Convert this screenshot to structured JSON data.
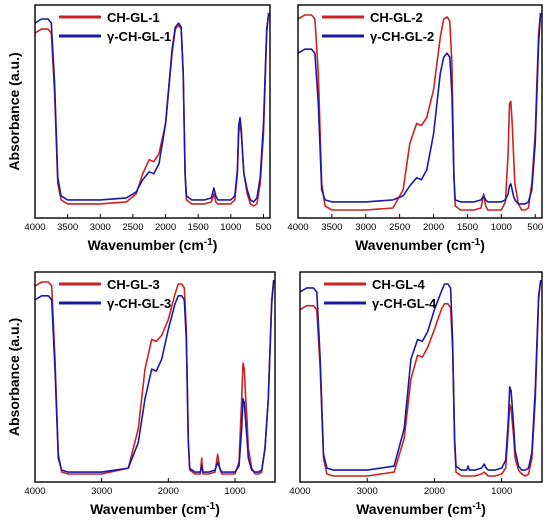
{
  "colors": {
    "red": "#cc2222",
    "blue": "#1a1aa8"
  },
  "chart_data": [
    {
      "type": "line",
      "xlabel": "Wavenumber (cm-1)",
      "ylabel": "Absorbance (a.u.)",
      "xlim": [
        4000,
        400
      ],
      "xticks": [
        4000,
        3500,
        3000,
        2500,
        2000,
        1500,
        1000,
        500
      ],
      "series": [
        {
          "name": "CH-GL-1",
          "color": "red",
          "x": [
            4000,
            3900,
            3800,
            3750,
            3700,
            3650,
            3600,
            3500,
            3000,
            2600,
            2450,
            2350,
            2250,
            2180,
            2100,
            2000,
            1900,
            1850,
            1800,
            1760,
            1730,
            1700,
            1680,
            1600,
            1400,
            1300,
            1260,
            1230,
            1200,
            1100,
            1000,
            940,
            900,
            880,
            860,
            840,
            820,
            800,
            750,
            700,
            650,
            600,
            550,
            500,
            450,
            420
          ],
          "y": [
            0.9,
            0.92,
            0.92,
            0.9,
            0.6,
            0.15,
            0.07,
            0.05,
            0.05,
            0.06,
            0.1,
            0.2,
            0.27,
            0.26,
            0.3,
            0.45,
            0.8,
            0.92,
            0.94,
            0.92,
            0.7,
            0.2,
            0.07,
            0.05,
            0.05,
            0.06,
            0.1,
            0.06,
            0.05,
            0.05,
            0.05,
            0.07,
            0.2,
            0.4,
            0.46,
            0.4,
            0.3,
            0.2,
            0.1,
            0.05,
            0.04,
            0.05,
            0.15,
            0.4,
            0.9,
            1.0
          ]
        },
        {
          "name": "γ-CH-GL-1",
          "color": "blue",
          "x": [
            4000,
            3900,
            3800,
            3750,
            3700,
            3650,
            3600,
            3500,
            3000,
            2600,
            2450,
            2350,
            2250,
            2180,
            2100,
            2000,
            1900,
            1850,
            1800,
            1760,
            1730,
            1700,
            1680,
            1600,
            1400,
            1300,
            1260,
            1230,
            1200,
            1100,
            1000,
            940,
            900,
            880,
            860,
            840,
            820,
            800,
            750,
            700,
            650,
            600,
            550,
            500,
            450,
            420
          ],
          "y": [
            0.95,
            0.97,
            0.97,
            0.95,
            0.65,
            0.18,
            0.09,
            0.07,
            0.07,
            0.08,
            0.11,
            0.17,
            0.21,
            0.2,
            0.25,
            0.45,
            0.82,
            0.93,
            0.95,
            0.93,
            0.7,
            0.2,
            0.09,
            0.07,
            0.07,
            0.08,
            0.13,
            0.09,
            0.07,
            0.07,
            0.07,
            0.09,
            0.22,
            0.44,
            0.48,
            0.42,
            0.3,
            0.2,
            0.12,
            0.07,
            0.06,
            0.08,
            0.18,
            0.45,
            0.92,
            1.0
          ]
        }
      ]
    },
    {
      "type": "line",
      "xlabel": "Wavenumber (cm-1)",
      "ylabel": "",
      "xlim": [
        4000,
        400
      ],
      "xticks": [
        4000,
        3500,
        3000,
        2500,
        2000,
        1500,
        1000,
        500
      ],
      "series": [
        {
          "name": "CH-GL-2",
          "color": "red",
          "x": [
            4000,
            3900,
            3800,
            3750,
            3700,
            3650,
            3600,
            3500,
            3000,
            2600,
            2450,
            2350,
            2250,
            2180,
            2100,
            2000,
            1900,
            1850,
            1800,
            1760,
            1730,
            1700,
            1680,
            1600,
            1400,
            1300,
            1260,
            1230,
            1200,
            1100,
            1000,
            940,
            900,
            880,
            860,
            840,
            820,
            800,
            750,
            700,
            650,
            600,
            550,
            500,
            450,
            420
          ],
          "y": [
            0.97,
            0.99,
            0.99,
            0.97,
            0.7,
            0.15,
            0.04,
            0.02,
            0.02,
            0.03,
            0.12,
            0.35,
            0.45,
            0.44,
            0.48,
            0.62,
            0.88,
            0.97,
            0.98,
            0.96,
            0.75,
            0.2,
            0.04,
            0.02,
            0.02,
            0.03,
            0.1,
            0.04,
            0.02,
            0.02,
            0.02,
            0.06,
            0.3,
            0.55,
            0.56,
            0.45,
            0.3,
            0.15,
            0.05,
            0.02,
            0.02,
            0.03,
            0.15,
            0.4,
            0.9,
            1.0
          ]
        },
        {
          "name": "γ-CH-GL-2",
          "color": "blue",
          "x": [
            4000,
            3900,
            3800,
            3750,
            3700,
            3650,
            3600,
            3500,
            3000,
            2600,
            2450,
            2350,
            2250,
            2180,
            2100,
            2000,
            1900,
            1850,
            1800,
            1760,
            1730,
            1700,
            1680,
            1600,
            1400,
            1300,
            1260,
            1230,
            1200,
            1100,
            1000,
            940,
            900,
            880,
            860,
            840,
            820,
            800,
            750,
            700,
            650,
            600,
            550,
            500,
            450,
            420
          ],
          "y": [
            0.8,
            0.82,
            0.82,
            0.8,
            0.55,
            0.12,
            0.07,
            0.06,
            0.06,
            0.07,
            0.09,
            0.14,
            0.18,
            0.17,
            0.22,
            0.4,
            0.7,
            0.78,
            0.8,
            0.78,
            0.6,
            0.18,
            0.07,
            0.06,
            0.06,
            0.07,
            0.09,
            0.07,
            0.06,
            0.06,
            0.06,
            0.07,
            0.1,
            0.14,
            0.15,
            0.12,
            0.09,
            0.07,
            0.05,
            0.05,
            0.05,
            0.06,
            0.12,
            0.35,
            0.85,
            1.0
          ]
        }
      ]
    },
    {
      "type": "line",
      "xlabel": "Wavenumber (cm-1)",
      "ylabel": "Absorbance (a.u.)",
      "xlim": [
        4000,
        400
      ],
      "xticks": [
        4000,
        3000,
        2000,
        1000
      ],
      "series": [
        {
          "name": "CH-GL-3",
          "color": "red",
          "x": [
            4000,
            3900,
            3800,
            3750,
            3700,
            3650,
            3600,
            3500,
            3000,
            2600,
            2450,
            2350,
            2250,
            2180,
            2100,
            2000,
            1900,
            1850,
            1800,
            1760,
            1730,
            1700,
            1680,
            1600,
            1520,
            1500,
            1480,
            1400,
            1300,
            1260,
            1230,
            1200,
            1100,
            1000,
            940,
            900,
            880,
            860,
            840,
            820,
            800,
            750,
            700,
            650,
            600,
            550,
            500,
            450,
            420
          ],
          "y": [
            0.97,
            0.99,
            0.99,
            0.97,
            0.6,
            0.12,
            0.03,
            0.02,
            0.02,
            0.05,
            0.25,
            0.55,
            0.7,
            0.69,
            0.72,
            0.8,
            0.93,
            0.98,
            0.98,
            0.96,
            0.75,
            0.2,
            0.04,
            0.02,
            0.02,
            0.1,
            0.02,
            0.02,
            0.03,
            0.12,
            0.05,
            0.02,
            0.02,
            0.02,
            0.08,
            0.4,
            0.58,
            0.55,
            0.4,
            0.3,
            0.15,
            0.05,
            0.02,
            0.02,
            0.03,
            0.15,
            0.4,
            0.9,
            1.0
          ]
        },
        {
          "name": "γ-CH-GL-3",
          "color": "blue",
          "x": [
            4000,
            3900,
            3800,
            3750,
            3700,
            3650,
            3600,
            3500,
            3000,
            2600,
            2450,
            2350,
            2250,
            2180,
            2100,
            2000,
            1900,
            1850,
            1800,
            1760,
            1730,
            1700,
            1680,
            1600,
            1520,
            1500,
            1480,
            1400,
            1300,
            1260,
            1230,
            1200,
            1100,
            1000,
            940,
            900,
            880,
            860,
            840,
            820,
            800,
            750,
            700,
            650,
            600,
            550,
            500,
            450,
            420
          ],
          "y": [
            0.9,
            0.92,
            0.92,
            0.9,
            0.55,
            0.1,
            0.04,
            0.03,
            0.03,
            0.05,
            0.18,
            0.4,
            0.55,
            0.54,
            0.6,
            0.75,
            0.88,
            0.92,
            0.92,
            0.9,
            0.7,
            0.18,
            0.05,
            0.03,
            0.03,
            0.06,
            0.03,
            0.03,
            0.04,
            0.08,
            0.05,
            0.03,
            0.03,
            0.03,
            0.06,
            0.25,
            0.4,
            0.38,
            0.28,
            0.2,
            0.1,
            0.04,
            0.03,
            0.03,
            0.04,
            0.15,
            0.4,
            0.88,
            1.0
          ]
        }
      ]
    },
    {
      "type": "line",
      "xlabel": "Wavenumber (cm-1)",
      "ylabel": "",
      "xlim": [
        4000,
        400
      ],
      "xticks": [
        4000,
        3000,
        2000,
        1000
      ],
      "series": [
        {
          "name": "CH-GL-4",
          "color": "red",
          "x": [
            4000,
            3900,
            3800,
            3750,
            3700,
            3650,
            3600,
            3500,
            3000,
            2600,
            2450,
            2350,
            2250,
            2180,
            2100,
            2000,
            1900,
            1850,
            1800,
            1760,
            1730,
            1700,
            1680,
            1600,
            1520,
            1500,
            1480,
            1400,
            1300,
            1260,
            1230,
            1200,
            1100,
            1000,
            940,
            900,
            880,
            860,
            840,
            820,
            800,
            750,
            700,
            650,
            600,
            550,
            500,
            450,
            420
          ],
          "y": [
            0.85,
            0.87,
            0.87,
            0.85,
            0.55,
            0.1,
            0.02,
            0.01,
            0.01,
            0.03,
            0.2,
            0.5,
            0.62,
            0.61,
            0.66,
            0.75,
            0.85,
            0.88,
            0.88,
            0.86,
            0.65,
            0.18,
            0.03,
            0.01,
            0.01,
            0.01,
            0.01,
            0.01,
            0.02,
            0.03,
            0.02,
            0.01,
            0.01,
            0.02,
            0.05,
            0.25,
            0.37,
            0.35,
            0.28,
            0.2,
            0.1,
            0.04,
            0.02,
            0.01,
            0.02,
            0.1,
            0.4,
            0.9,
            1.0
          ]
        },
        {
          "name": "γ-CH-GL-4",
          "color": "blue",
          "x": [
            4000,
            3900,
            3800,
            3750,
            3700,
            3650,
            3600,
            3500,
            3000,
            2600,
            2450,
            2350,
            2250,
            2180,
            2100,
            2000,
            1900,
            1850,
            1800,
            1760,
            1730,
            1700,
            1680,
            1600,
            1520,
            1500,
            1480,
            1400,
            1300,
            1260,
            1230,
            1200,
            1100,
            1000,
            940,
            900,
            880,
            860,
            840,
            820,
            800,
            750,
            700,
            650,
            600,
            550,
            500,
            450,
            420
          ],
          "y": [
            0.94,
            0.96,
            0.96,
            0.94,
            0.6,
            0.12,
            0.05,
            0.04,
            0.04,
            0.06,
            0.25,
            0.6,
            0.7,
            0.69,
            0.74,
            0.85,
            0.94,
            0.98,
            0.98,
            0.96,
            0.7,
            0.2,
            0.06,
            0.04,
            0.04,
            0.06,
            0.04,
            0.04,
            0.05,
            0.07,
            0.05,
            0.04,
            0.04,
            0.05,
            0.09,
            0.3,
            0.46,
            0.44,
            0.35,
            0.25,
            0.14,
            0.06,
            0.04,
            0.04,
            0.05,
            0.13,
            0.45,
            0.92,
            1.0
          ]
        }
      ]
    }
  ]
}
